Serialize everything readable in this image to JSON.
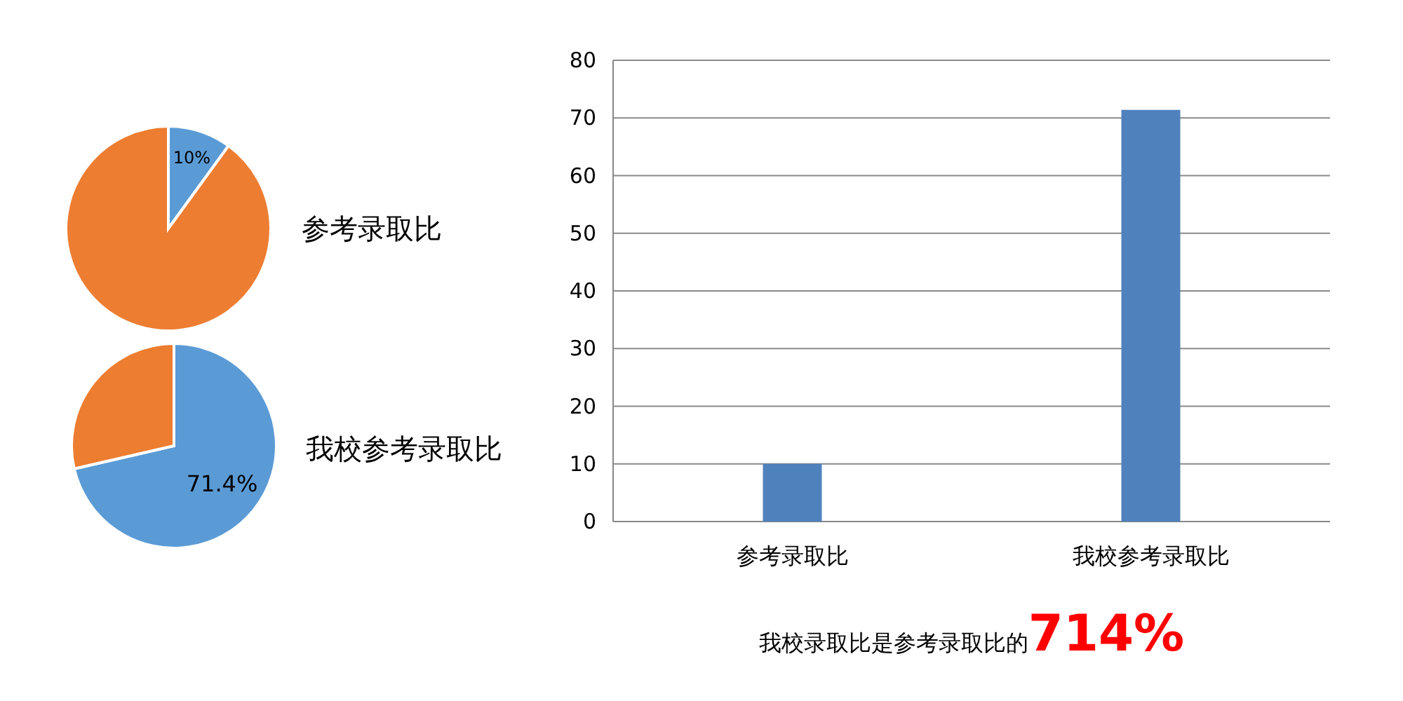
{
  "chart_data": [
    {
      "type": "pie",
      "title": "参考录取比",
      "categories": [
        null,
        null
      ],
      "values": [
        10,
        90
      ],
      "colors": [
        "#5b9bd5",
        "#ed7d31"
      ],
      "value_labels": [
        "10%",
        null
      ]
    },
    {
      "type": "pie",
      "title": "我校参考录取比",
      "categories": [
        null,
        null
      ],
      "values": [
        71.4,
        28.6
      ],
      "colors": [
        "#5b9bd5",
        "#ed7d31"
      ],
      "value_labels": [
        "71.4%",
        null
      ]
    },
    {
      "type": "bar",
      "categories": [
        "参考录取比",
        "我校参考录取比"
      ],
      "values": [
        10,
        71.4
      ],
      "color": "#4f81bd",
      "ylim": [
        0,
        80
      ],
      "yticks": [
        0,
        10,
        20,
        30,
        40,
        50,
        60,
        70,
        80
      ],
      "grid": "y",
      "annotations": [
        "我校录取比是参考录取比的",
        "714%"
      ]
    }
  ]
}
